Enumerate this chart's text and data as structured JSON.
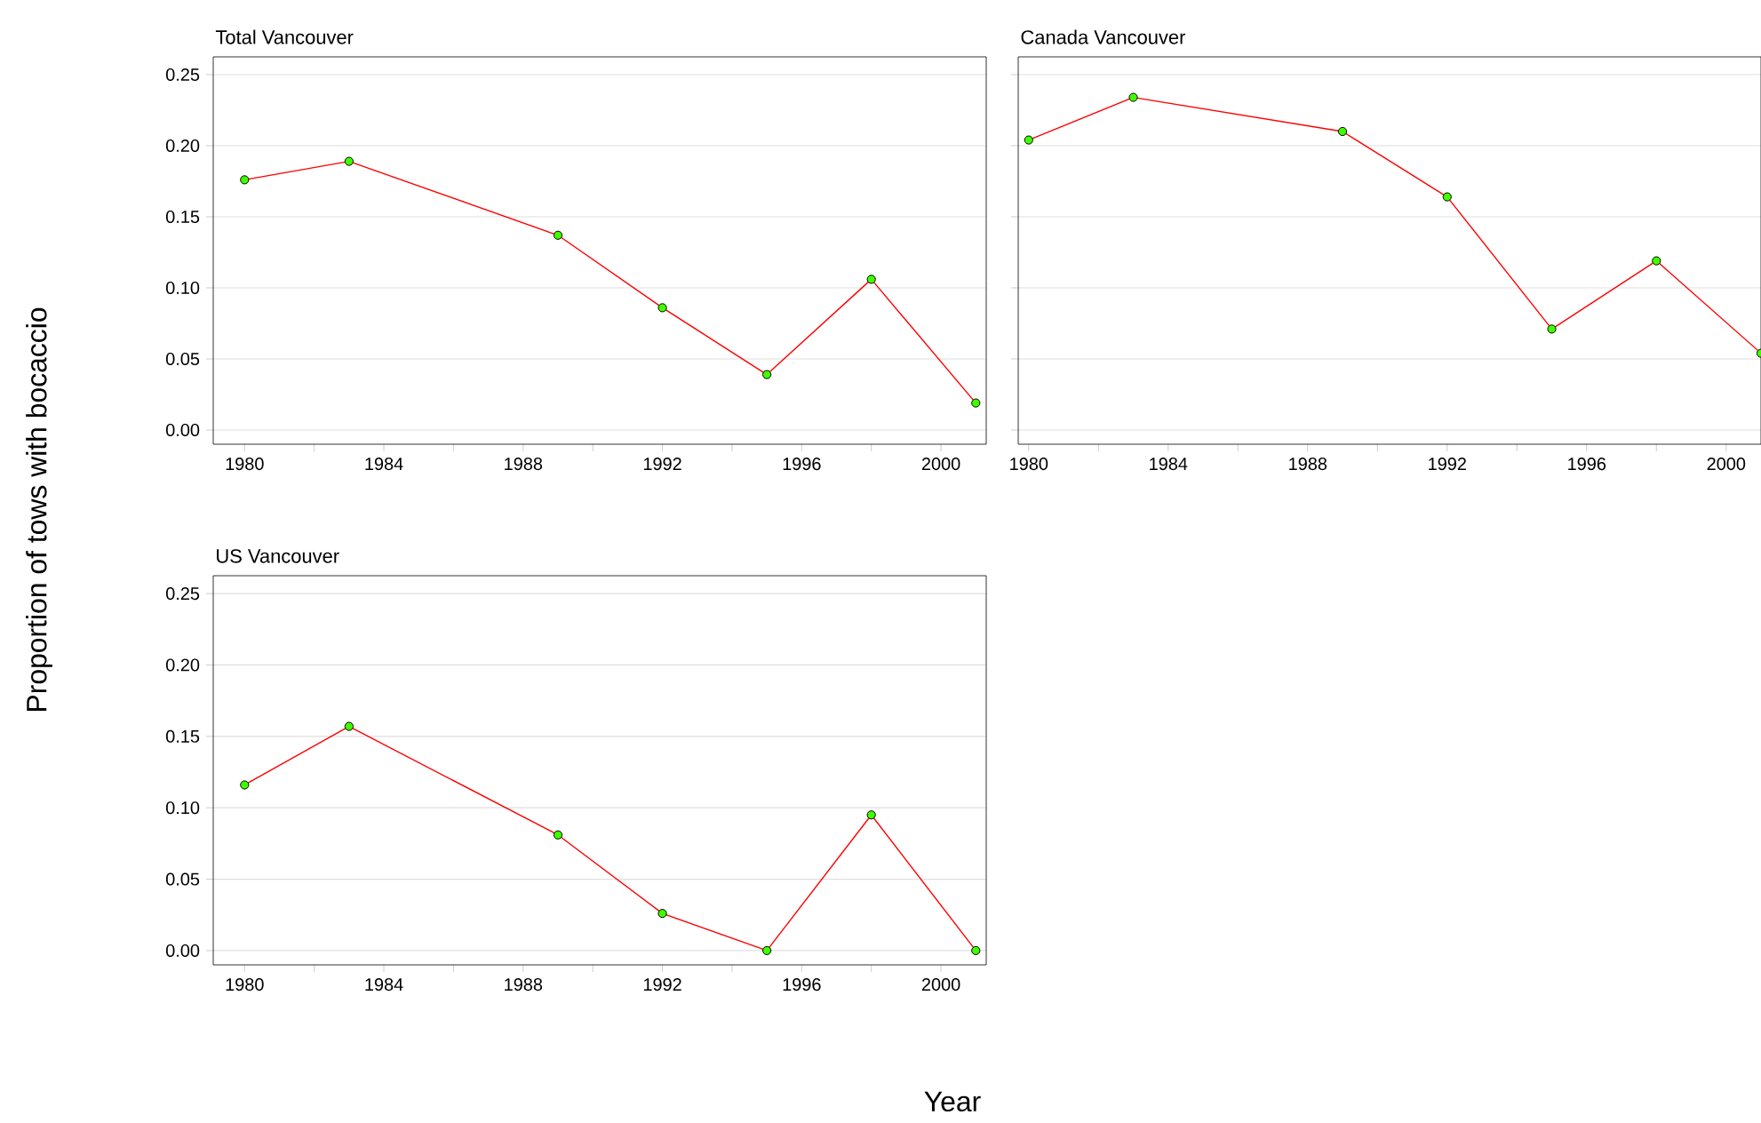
{
  "chart_data": [
    {
      "type": "line",
      "title": "Total Vancouver",
      "ylabel": "Proportion of tows with bocaccio",
      "xlabel": "Year",
      "x": [
        1980,
        1983,
        1989,
        1992,
        1995,
        1998,
        2001
      ],
      "series": [
        {
          "color": "#ff0000",
          "values": [
            0.176,
            0.189,
            0.137,
            0.086,
            0.039,
            0.106,
            0.019
          ]
        }
      ],
      "xlim": [
        1979.1,
        2001.3
      ],
      "ylim": [
        -0.01,
        0.2625
      ],
      "xticks": [
        1980,
        {
          "value": 1982,
          "label": null
        },
        1984,
        {
          "value": 1986,
          "label": null
        },
        1988,
        {
          "value": 1990,
          "label": null
        },
        1992,
        {
          "value": 1994,
          "label": null
        },
        1996,
        {
          "value": 1998,
          "label": null
        },
        2000
      ],
      "yticks": [
        {
          "value": 0,
          "label": "0.00"
        },
        {
          "value": 0.05,
          "label": "0.05"
        },
        {
          "value": 0.1,
          "label": "0.10"
        },
        {
          "value": 0.15,
          "label": "0.15"
        },
        {
          "value": 0.2,
          "label": "0.20"
        },
        {
          "value": 0.25,
          "label": "0.25"
        }
      ],
      "grid": "y",
      "marker": "circle"
    },
    {
      "type": "line",
      "title": "Canada Vancouver",
      "x": [
        1980,
        1983,
        1989,
        1992,
        1995,
        1998,
        2001
      ],
      "series": [
        {
          "color": "#ff0000",
          "values": [
            0.204,
            0.234,
            0.21,
            0.164,
            0.071,
            0.119,
            0.054
          ]
        }
      ],
      "xlim": [
        1979.7,
        2001
      ],
      "ylim": [
        -0.01,
        0.2625
      ],
      "xticks": [
        1980,
        {
          "value": 1982,
          "label": null
        },
        1984,
        {
          "value": 1986,
          "label": null
        },
        1988,
        {
          "value": 1990,
          "label": null
        },
        1992,
        {
          "value": 1994,
          "label": null
        },
        1996,
        {
          "value": 1998,
          "label": null
        },
        2000
      ],
      "yticks": [
        0,
        0.05,
        0.1,
        0.15,
        0.2,
        0.25
      ],
      "grid": "y",
      "marker": "circle",
      "tick_labels": "x"
    },
    {
      "type": "line",
      "title": "US Vancouver",
      "x": [
        1980,
        1983,
        1989,
        1992,
        1995,
        1998,
        2001
      ],
      "series": [
        {
          "color": "#ff0000",
          "values": [
            0.116,
            0.157,
            0.081,
            0.026,
            0,
            0.095,
            0
          ]
        }
      ],
      "xlim": [
        1979.1,
        2001.3
      ],
      "ylim": [
        -0.01,
        0.2625
      ],
      "xticks": [
        1980,
        {
          "value": 1982,
          "label": null
        },
        1984,
        {
          "value": 1986,
          "label": null
        },
        1988,
        {
          "value": 1990,
          "label": null
        },
        1992,
        {
          "value": 1994,
          "label": null
        },
        1996,
        {
          "value": 1998,
          "label": null
        },
        2000
      ],
      "yticks": [
        {
          "value": 0,
          "label": "0.00"
        },
        {
          "value": 0.05,
          "label": "0.05"
        },
        {
          "value": 0.1,
          "label": "0.10"
        },
        {
          "value": 0.15,
          "label": "0.15"
        },
        {
          "value": 0.2,
          "label": "0.20"
        },
        {
          "value": 0.25,
          "label": "0.25"
        }
      ],
      "grid": "y",
      "marker": "circle"
    }
  ]
}
